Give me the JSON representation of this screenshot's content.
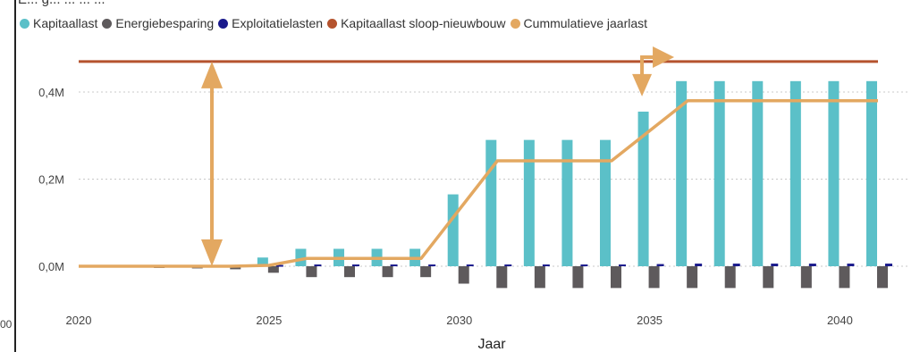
{
  "header_clip": "E... g... ... ... ...",
  "edge_tick": "00",
  "legend": [
    {
      "label": "Kapitaallast",
      "color": "#5BC0C8"
    },
    {
      "label": "Energiebesparing",
      "color": "#5E5A5C"
    },
    {
      "label": "Exploitatielasten",
      "color": "#1A1A8C"
    },
    {
      "label": "Kapitaallast sloop-nieuwbouw",
      "color": "#B5532E"
    },
    {
      "label": "Cummulatieve jaarlast",
      "color": "#E3A861"
    }
  ],
  "chart_data": {
    "type": "bar",
    "xlabel": "Jaar",
    "ylabel": "",
    "ylim": [
      -0.08,
      0.48
    ],
    "y_ticks": [
      0.0,
      0.2,
      0.4
    ],
    "y_tick_labels": [
      "0,0M",
      "0,2M",
      "0,4M"
    ],
    "x_tick_labels": [
      "2020",
      "2025",
      "2030",
      "2035",
      "2040"
    ],
    "x_range": [
      2020,
      2041
    ],
    "categories": [
      2020,
      2021,
      2022,
      2023,
      2024,
      2025,
      2026,
      2027,
      2028,
      2029,
      2030,
      2031,
      2032,
      2033,
      2034,
      2035,
      2036,
      2037,
      2038,
      2039,
      2040,
      2041
    ],
    "series": [
      {
        "name": "Kapitaallast",
        "kind": "bar",
        "color": "#5BC0C8",
        "values": [
          0,
          0,
          0,
          0,
          0,
          0.02,
          0.04,
          0.04,
          0.04,
          0.04,
          0.165,
          0.29,
          0.29,
          0.29,
          0.29,
          0.355,
          0.425,
          0.425,
          0.425,
          0.425,
          0.425,
          0.425
        ]
      },
      {
        "name": "Energiebesparing",
        "kind": "bar",
        "color": "#5E5A5C",
        "values": [
          0,
          0,
          -0.003,
          -0.005,
          -0.007,
          -0.015,
          -0.025,
          -0.025,
          -0.025,
          -0.025,
          -0.04,
          -0.05,
          -0.05,
          -0.05,
          -0.05,
          -0.05,
          -0.05,
          -0.05,
          -0.05,
          -0.05,
          -0.05,
          -0.05
        ]
      },
      {
        "name": "Exploitatielasten",
        "kind": "bar",
        "color": "#1A1A8C",
        "values": [
          0,
          0,
          0.003,
          0.003,
          0.003,
          0.003,
          0.004,
          0.004,
          0.004,
          0.004,
          0.004,
          0.004,
          0.004,
          0.004,
          0.004,
          0.005,
          0.006,
          0.006,
          0.006,
          0.006,
          0.006,
          0.006
        ]
      },
      {
        "name": "Kapitaallast sloop-nieuwbouw",
        "kind": "line",
        "color": "#B5532E",
        "x": [
          2020,
          2041
        ],
        "values": [
          0.47,
          0.47
        ]
      },
      {
        "name": "Cummulatieve jaarlast",
        "kind": "line",
        "color": "#E3A861",
        "x": [
          2020,
          2024,
          2025,
          2026,
          2029,
          2031,
          2034,
          2036,
          2041
        ],
        "values": [
          0,
          0,
          0.002,
          0.018,
          0.018,
          0.242,
          0.242,
          0.38,
          0.38
        ]
      }
    ],
    "annotations": [
      {
        "type": "double-arrow-vertical",
        "x": 2023.5,
        "y_from": 0.0,
        "y_to": 0.47,
        "color": "#E3A861"
      },
      {
        "type": "elbow-arrow",
        "x": 2034.8,
        "y_top": 0.48,
        "y_end": 0.39,
        "color": "#E3A861"
      }
    ],
    "grid": true,
    "legend_position": "top-left"
  }
}
